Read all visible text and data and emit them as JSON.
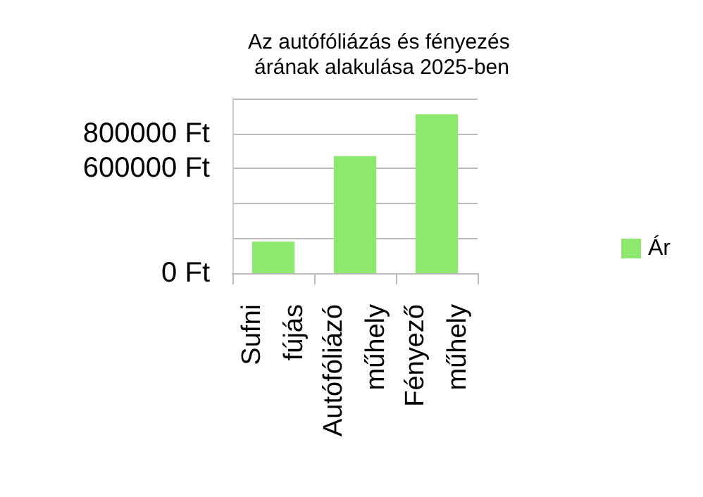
{
  "chart_data": {
    "type": "bar",
    "title": "Az autófóliázás és fényezés árának alakulása 2025-ben",
    "categories": [
      "Sufni fújás",
      "Autófóliázó műhely",
      "Fényező műhely"
    ],
    "series": [
      {
        "name": "Ár",
        "color": "#8fe86e",
        "values": [
          180000,
          670000,
          910000
        ]
      }
    ],
    "ylim": [
      0,
      1000000
    ],
    "yticks": [
      {
        "value": 0,
        "label": "0 Ft"
      },
      {
        "value": 200000,
        "label": null
      },
      {
        "value": 400000,
        "label": null
      },
      {
        "value": 600000,
        "label": "600000 Ft"
      },
      {
        "value": 800000,
        "label": "800000 Ft"
      },
      {
        "value": 1000000,
        "label": null
      }
    ],
    "grid": "y",
    "legend": "right"
  }
}
